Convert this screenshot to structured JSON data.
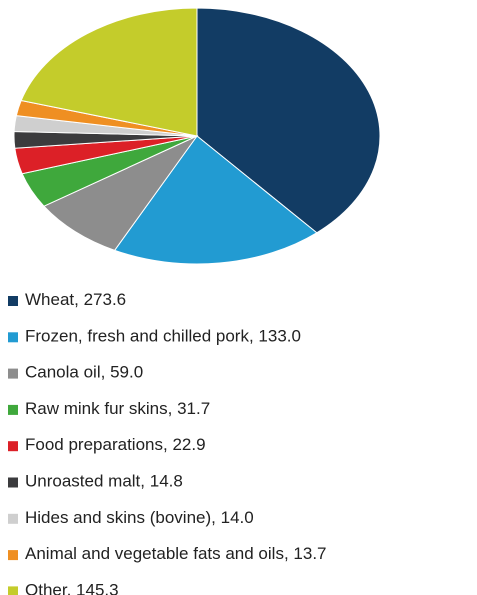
{
  "chart_data": {
    "type": "pie",
    "categories": [
      "Wheat",
      "Frozen, fresh and chilled pork",
      "Canola oil",
      "Raw mink fur skins",
      "Food preparations",
      "Unroasted malt",
      "Hides and skins (bovine)",
      "Animal and vegetable fats and oils",
      "Other"
    ],
    "values": [
      273.6,
      133.0,
      59.0,
      31.7,
      22.9,
      14.8,
      14.0,
      13.7,
      145.3
    ],
    "value_labels": [
      "273.6",
      "133.0",
      "59.0",
      "31.7",
      "22.9",
      "14.8",
      "14.0",
      "13.7",
      "145.3"
    ],
    "separator": ", ",
    "colors": [
      "#123c64",
      "#229bd2",
      "#8d8d8d",
      "#3fa83c",
      "#dc2027",
      "#3b3b3d",
      "#cfcfcf",
      "#ef8f22",
      "#c4cc2b"
    ]
  }
}
